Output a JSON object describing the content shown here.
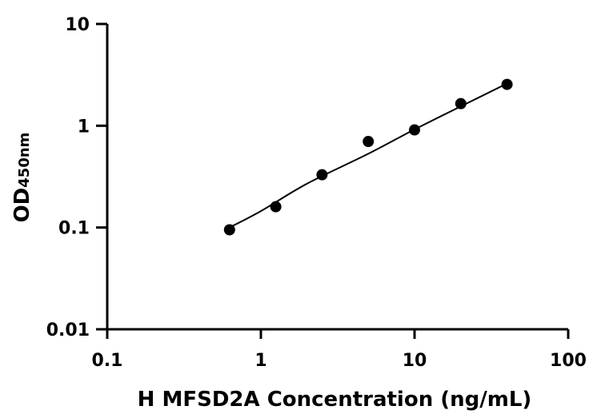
{
  "chart_data": {
    "type": "scatter",
    "title": "",
    "xlabel": "H MFSD2A Concentration (ng/mL)",
    "ylabel_main": "OD",
    "ylabel_sub": "450nm",
    "x_scale": "log",
    "y_scale": "log",
    "xlim": [
      0.1,
      100
    ],
    "ylim": [
      0.01,
      10
    ],
    "x_ticks": [
      0.1,
      1,
      10,
      100
    ],
    "x_tick_labels": [
      "0.1",
      "1",
      "10",
      "100"
    ],
    "y_ticks": [
      0.01,
      0.1,
      1,
      10
    ],
    "y_tick_labels": [
      "0.01",
      "0.1",
      "1",
      "10"
    ],
    "grid": false,
    "series": [
      {
        "x": [
          0.625,
          1.25,
          2.5,
          5,
          10,
          20,
          40
        ],
        "y": [
          0.095,
          0.16,
          0.33,
          0.7,
          0.91,
          1.65,
          2.55
        ]
      }
    ],
    "fit_curve": {
      "x": [
        0.625,
        1,
        2,
        5,
        10,
        20,
        40
      ],
      "y": [
        0.1,
        0.145,
        0.27,
        0.53,
        0.92,
        1.55,
        2.6
      ]
    },
    "colors": {
      "marker": "#000000",
      "line": "#000000",
      "axis": "#000000"
    }
  }
}
